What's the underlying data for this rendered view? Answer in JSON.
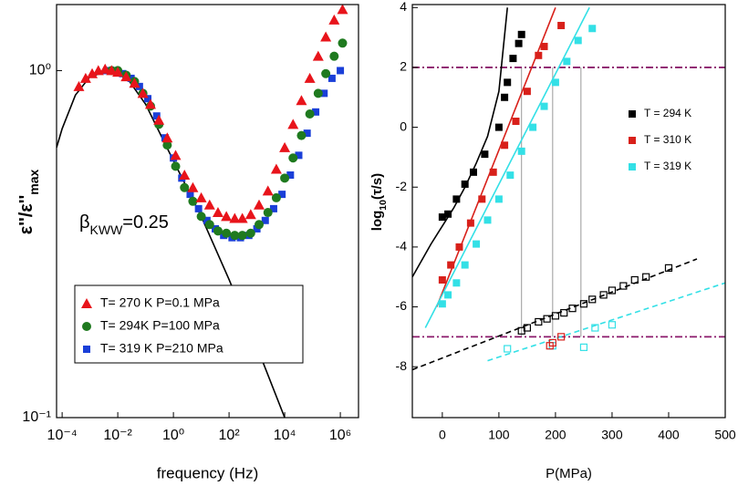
{
  "chart_data": [
    {
      "type": "scatter",
      "xscale": "log",
      "yscale": "log",
      "xlabel": "frequency (Hz)",
      "ylabel": [
        "ε''/ε''",
        "max"
      ],
      "annotation": [
        "β",
        "KWW",
        "=0.25"
      ],
      "xlim": [
        6.3e-05,
        4500000
      ],
      "ylim": [
        0.1,
        1.55
      ],
      "xticks": [
        {
          "value": 0.0001,
          "label": "10⁻⁴"
        },
        {
          "value": 0.01,
          "label": "10⁻²"
        },
        {
          "value": 1,
          "label": "10⁰"
        },
        {
          "value": 100,
          "label": "10²"
        },
        {
          "value": 10000,
          "label": "10⁴"
        },
        {
          "value": 1000000,
          "label": "10⁶"
        }
      ],
      "yticks": [
        {
          "value": 0.1,
          "label": "10⁻¹"
        },
        {
          "value": 1,
          "label": "10⁰"
        }
      ],
      "legend": "lower-left",
      "series": [
        {
          "name": "T= 270 K P=0.1 MPa",
          "color": "#e8141b",
          "marker": "triangle",
          "x": [
            0.0004,
            0.0007,
            0.0012,
            0.002,
            0.0035,
            0.006,
            0.01,
            0.02,
            0.04,
            0.08,
            0.15,
            0.3,
            0.6,
            1.2,
            2.5,
            5,
            10,
            20,
            40,
            80,
            160,
            300,
            600,
            1200,
            2500,
            5000,
            10000,
            20000,
            40000,
            80000,
            160000,
            300000,
            600000,
            1200000
          ],
          "values": [
            0.9,
            0.95,
            0.98,
            1.0,
            1.01,
            1.0,
            0.99,
            0.96,
            0.92,
            0.86,
            0.8,
            0.72,
            0.64,
            0.57,
            0.5,
            0.46,
            0.43,
            0.41,
            0.39,
            0.38,
            0.375,
            0.375,
            0.385,
            0.41,
            0.45,
            0.52,
            0.6,
            0.7,
            0.82,
            0.95,
            1.1,
            1.25,
            1.4,
            1.5
          ]
        },
        {
          "name": "T= 294K P=100 MPa",
          "color": "#1f7a1f",
          "marker": "circle",
          "x": [
            0.006,
            0.01,
            0.02,
            0.04,
            0.08,
            0.15,
            0.3,
            0.6,
            1.2,
            2.5,
            5,
            10,
            20,
            40,
            80,
            160,
            300,
            600,
            1200,
            2500,
            5000,
            10000,
            20000,
            40000,
            80000,
            160000,
            300000,
            600000,
            1200000
          ],
          "values": [
            1.0,
            1.0,
            0.97,
            0.93,
            0.86,
            0.79,
            0.7,
            0.61,
            0.53,
            0.46,
            0.42,
            0.38,
            0.36,
            0.345,
            0.34,
            0.335,
            0.335,
            0.34,
            0.36,
            0.39,
            0.43,
            0.49,
            0.56,
            0.65,
            0.75,
            0.86,
            0.98,
            1.1,
            1.2
          ]
        },
        {
          "name": "T= 319 K P=210 MPa",
          "color": "#1a3fd8",
          "marker": "square",
          "x": [
            0.004,
            0.008,
            0.015,
            0.03,
            0.06,
            0.12,
            0.25,
            0.5,
            1,
            2,
            4,
            8,
            16,
            32,
            64,
            128,
            256,
            512,
            1000,
            2000,
            4000,
            8000,
            16000,
            32000,
            64000,
            130000,
            260000,
            500000,
            1000000
          ],
          "values": [
            1.0,
            1.0,
            0.98,
            0.95,
            0.9,
            0.83,
            0.74,
            0.64,
            0.56,
            0.49,
            0.44,
            0.4,
            0.37,
            0.35,
            0.335,
            0.33,
            0.33,
            0.335,
            0.35,
            0.37,
            0.4,
            0.44,
            0.5,
            0.57,
            0.66,
            0.76,
            0.86,
            0.95,
            1.0
          ]
        },
        {
          "color": "#000000",
          "marker": "none",
          "line": "solid",
          "x": [
            6.3e-05,
            0.0001,
            0.0003,
            0.001,
            0.005,
            0.02,
            0.1,
            1,
            10,
            100,
            1000,
            10000
          ],
          "values": [
            0.6,
            0.68,
            0.85,
            0.96,
            1.0,
            0.96,
            0.8,
            0.55,
            0.38,
            0.25,
            0.16,
            0.1
          ]
        }
      ]
    },
    {
      "type": "scatter",
      "xlabel": "P(MPa)",
      "ylabel": [
        "log",
        "10",
        "(τ/s)"
      ],
      "xlim": [
        -53,
        500
      ],
      "ylim": [
        -9.7,
        4.1
      ],
      "xticks": [
        0,
        100,
        200,
        300,
        400,
        500
      ],
      "yticks": [
        -8,
        -6,
        -4,
        -2,
        0,
        2,
        4
      ],
      "legend": "upper-right",
      "reference_lines": {
        "h": [
          2,
          -7
        ],
        "v": [
          140,
          195,
          245
        ],
        "color": "#8b1a6b",
        "vcolor": "#999999"
      },
      "series": [
        {
          "name": "T = 294 K",
          "color": "#000000",
          "marker": "square",
          "x": [
            0,
            10,
            25,
            40,
            55,
            75,
            100,
            110,
            115,
            125,
            135,
            140
          ],
          "values": [
            -3.0,
            -2.9,
            -2.4,
            -1.9,
            -1.5,
            -0.9,
            0.0,
            1.0,
            1.5,
            2.3,
            2.8,
            3.1
          ]
        },
        {
          "name": "T = 310 K",
          "color": "#d8201a",
          "marker": "square",
          "x": [
            0,
            15,
            30,
            50,
            70,
            90,
            110,
            130,
            150,
            170,
            180,
            210
          ],
          "values": [
            -5.1,
            -4.6,
            -4.0,
            -3.2,
            -2.4,
            -1.5,
            -0.6,
            0.2,
            1.2,
            2.4,
            2.7,
            3.4
          ]
        },
        {
          "name": "T = 319 K",
          "color": "#33e0e6",
          "marker": "square",
          "x": [
            0,
            10,
            25,
            40,
            60,
            80,
            100,
            120,
            140,
            160,
            180,
            200,
            220,
            240,
            265
          ],
          "values": [
            -5.9,
            -5.6,
            -5.2,
            -4.6,
            -3.9,
            -3.1,
            -2.4,
            -1.6,
            -0.8,
            0.0,
            0.7,
            1.5,
            2.2,
            2.9,
            3.3
          ]
        },
        {
          "color": "#000000",
          "marker": "none",
          "line": "solid",
          "x": [
            -53,
            -20,
            0,
            20,
            40,
            60,
            80,
            100,
            115
          ],
          "values": [
            -5.0,
            -3.9,
            -3.3,
            -2.7,
            -2.0,
            -1.2,
            -0.3,
            1.2,
            4.0
          ]
        },
        {
          "color": "#d8201a",
          "marker": "none",
          "line": "solid",
          "x": [
            -10,
            200
          ],
          "values": [
            -6.0,
            4.0
          ]
        },
        {
          "color": "#33e0e6",
          "marker": "none",
          "line": "solid",
          "x": [
            -30,
            260
          ],
          "values": [
            -6.7,
            4.0
          ]
        },
        {
          "color": "#000000",
          "marker": "open-square",
          "x": [
            140,
            150,
            170,
            185,
            200,
            215,
            230,
            250,
            265,
            285,
            300,
            320,
            340,
            360,
            400
          ],
          "values": [
            -6.8,
            -6.7,
            -6.5,
            -6.4,
            -6.3,
            -6.2,
            -6.05,
            -5.9,
            -5.75,
            -5.6,
            -5.45,
            -5.3,
            -5.1,
            -5.0,
            -4.7
          ]
        },
        {
          "color": "#d8201a",
          "marker": "open-square",
          "x": [
            190,
            195,
            210
          ],
          "values": [
            -7.3,
            -7.2,
            -7.0
          ]
        },
        {
          "color": "#33e0e6",
          "marker": "open-square",
          "x": [
            115,
            195,
            250,
            270,
            300
          ],
          "values": [
            -7.4,
            -7.3,
            -7.35,
            -6.7,
            -6.6
          ]
        },
        {
          "color": "#000000",
          "marker": "none",
          "line": "dashed",
          "x": [
            -53,
            450
          ],
          "values": [
            -8.1,
            -4.4
          ]
        },
        {
          "color": "#33e0e6",
          "marker": "none",
          "line": "dashed",
          "x": [
            80,
            500
          ],
          "values": [
            -7.8,
            -5.2
          ]
        }
      ]
    }
  ]
}
